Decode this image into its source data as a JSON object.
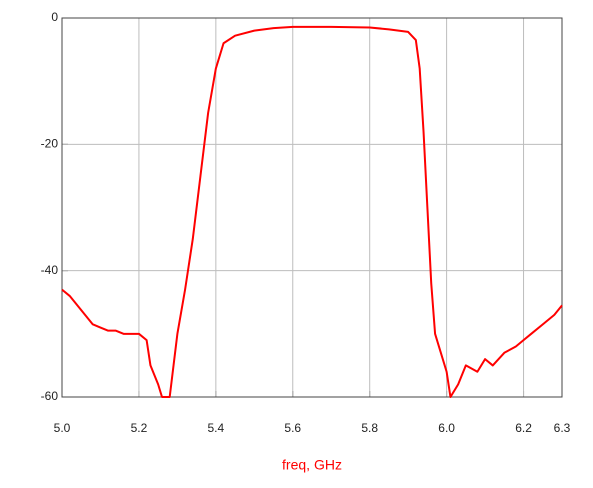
{
  "chart_data": {
    "type": "line",
    "x_label": "freq, GHz",
    "x": [
      5.0,
      5.02,
      5.04,
      5.06,
      5.08,
      5.1,
      5.12,
      5.14,
      5.16,
      5.18,
      5.2,
      5.22,
      5.23,
      5.25,
      5.26,
      5.28,
      5.29,
      5.3,
      5.32,
      5.34,
      5.36,
      5.38,
      5.4,
      5.42,
      5.45,
      5.5,
      5.55,
      5.6,
      5.7,
      5.8,
      5.85,
      5.9,
      5.92,
      5.93,
      5.94,
      5.95,
      5.96,
      5.97,
      5.98,
      6.0,
      6.01,
      6.03,
      6.05,
      6.08,
      6.1,
      6.12,
      6.15,
      6.18,
      6.2,
      6.22,
      6.25,
      6.28,
      6.3
    ],
    "values": [
      -43,
      -44,
      -45.5,
      -47,
      -48.5,
      -49,
      -49.5,
      -49.5,
      -50,
      -50,
      -50,
      -51,
      -55,
      -58,
      -60,
      -60,
      -55,
      -50,
      -43,
      -35,
      -25,
      -15,
      -8,
      -4,
      -2.8,
      -2,
      -1.6,
      -1.4,
      -1.4,
      -1.5,
      -1.8,
      -2.2,
      -3.5,
      -8,
      -18,
      -30,
      -42,
      -50,
      -52,
      -56,
      -60,
      -58,
      -55,
      -56,
      -54,
      -55,
      -53,
      -52,
      -51,
      -50,
      -48.5,
      -47,
      -45.5
    ],
    "color": "#ff0000",
    "xlim": [
      5.0,
      6.3
    ],
    "ylim": [
      -60,
      0
    ],
    "xticks": [
      {
        "value": 5.0,
        "label": "5.0"
      },
      5.2,
      5.4,
      5.6,
      5.8,
      {
        "value": 6.0,
        "label": "6.0"
      },
      6.2,
      6.3
    ],
    "yticks": [
      -60,
      -40,
      -20,
      0
    ],
    "grid": true
  }
}
